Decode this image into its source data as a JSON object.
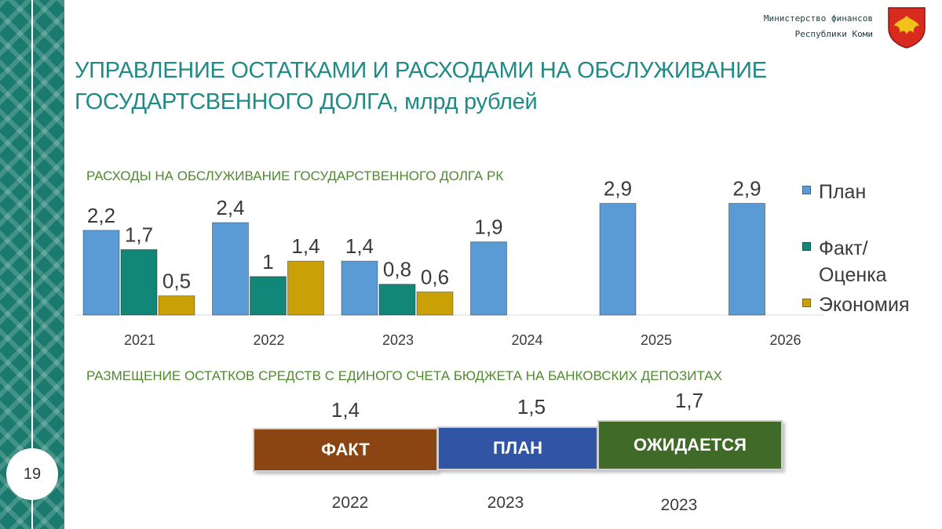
{
  "header": {
    "ministry_line1": "Министерство финансов",
    "ministry_line2": "Республики Коми",
    "page_number": "19"
  },
  "page_title": "УПРАВЛЕНИЕ ОСТАТКАМИ И РАСХОДАМИ НА ОБСЛУЖИВАНИЕ ГОСУДАРТСВЕННОГО ДОЛГА, млрд рублей",
  "colors": {
    "accent_teal": "#1f8a86",
    "section_green": "#4e8a2e",
    "plan": "#5b9bd5",
    "fact": "#13867a",
    "economy": "#c9a006"
  },
  "chart_data": [
    {
      "type": "bar",
      "title": "РАСХОДЫ  НА ОБСЛУЖИВАНИЕ ГОСУДАРСТВЕННОГО ДОЛГА РК",
      "categories": [
        "2021",
        "2022",
        "2023",
        "2024",
        "2025",
        "2026"
      ],
      "series": [
        {
          "name": "План",
          "values": [
            2.2,
            2.4,
            1.4,
            1.9,
            2.9,
            2.9
          ],
          "labels": [
            "2,2",
            "2,4",
            "1,4",
            "1,9",
            "2,9",
            "2,9"
          ],
          "color": "#5b9bd5"
        },
        {
          "name": "Факт/ Оценка",
          "values": [
            1.7,
            1.0,
            0.8,
            null,
            null,
            null
          ],
          "labels": [
            "1,7",
            "1",
            "0,8",
            "",
            "",
            ""
          ],
          "color": "#13867a"
        },
        {
          "name": "Экономия",
          "values": [
            0.5,
            1.4,
            0.6,
            null,
            null,
            null
          ],
          "labels": [
            "0,5",
            "1,4",
            "0,6",
            "",
            "",
            ""
          ],
          "color": "#c9a006"
        }
      ],
      "legend_position": "right",
      "ylim": [
        0,
        3.2
      ],
      "grid": false
    },
    {
      "type": "bar",
      "title": "РАЗМЕЩЕНИЕ ОСТАТКОВ СРЕДСТВ С ЕДИНОГО СЧЕТА БЮДЖЕТА НА БАНКОВСКИХ ДЕПОЗИТАХ",
      "categories": [
        "2022",
        "2023",
        "2023"
      ],
      "values": [
        1.4,
        1.5,
        1.7
      ],
      "value_labels": [
        "1,4",
        "1,5",
        "1,7"
      ],
      "bar_labels": [
        "ФАКТ",
        "ПЛАН",
        "ОЖИДАЕТСЯ"
      ],
      "colors": [
        "#8b4513",
        "#2f55a4",
        "#3f6a27"
      ]
    }
  ]
}
